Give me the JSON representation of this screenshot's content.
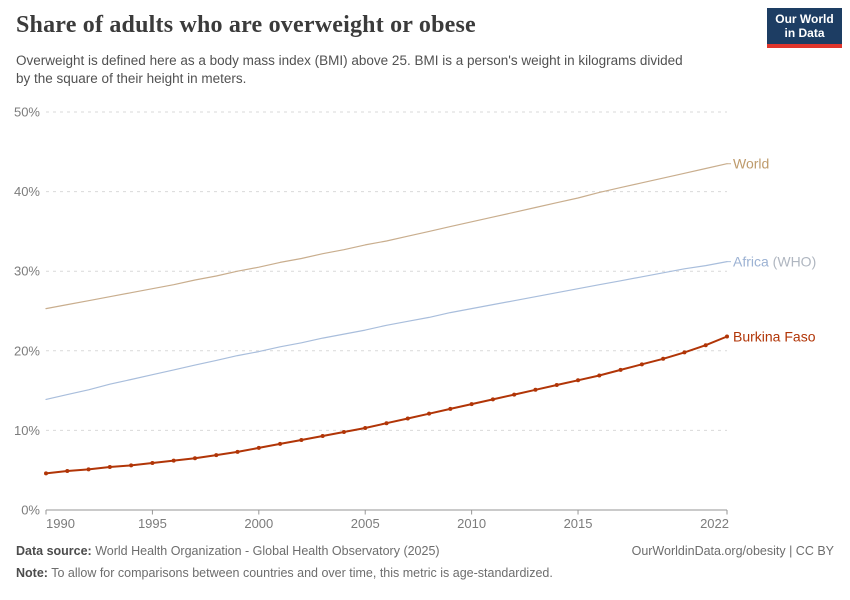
{
  "header": {
    "title": "Share of adults who are overweight or obese",
    "subtitle_line1": "Overweight is defined here as a body mass index (BMI) above 25. BMI is a person's weight in kilograms divided",
    "subtitle_line2": "by the square of their height in meters.",
    "logo": {
      "line1": "Our World",
      "line2": "in Data",
      "bg_color": "#1d3d63",
      "accent_color": "#e0352c"
    }
  },
  "chart_data": {
    "type": "line",
    "title": "Share of adults who are overweight or obese",
    "xlabel": "",
    "ylabel": "",
    "x": [
      1990,
      1991,
      1992,
      1993,
      1994,
      1995,
      1996,
      1997,
      1998,
      1999,
      2000,
      2001,
      2002,
      2003,
      2004,
      2005,
      2006,
      2007,
      2008,
      2009,
      2010,
      2011,
      2012,
      2013,
      2014,
      2015,
      2016,
      2017,
      2018,
      2019,
      2020,
      2021,
      2022
    ],
    "series": [
      {
        "name": "World",
        "label": "World",
        "label_suffix": "",
        "color": "#BE9B6C",
        "line_color": "#C9AE8E",
        "line_width": 1.2,
        "markers": false,
        "values": [
          25.3,
          25.8,
          26.3,
          26.8,
          27.3,
          27.8,
          28.3,
          28.9,
          29.4,
          30.0,
          30.5,
          31.1,
          31.6,
          32.2,
          32.7,
          33.3,
          33.8,
          34.4,
          35.0,
          35.6,
          36.2,
          36.8,
          37.4,
          38.0,
          38.6,
          39.2,
          39.9,
          40.5,
          41.1,
          41.7,
          42.3,
          42.9,
          43.5
        ]
      },
      {
        "name": "Africa (WHO)",
        "label": "Africa",
        "label_suffix": " (WHO)",
        "color": "#9CB2D3",
        "suffix_color": "#AFB6C0",
        "line_color": "#A9BEDC",
        "line_width": 1.2,
        "markers": false,
        "values": [
          13.9,
          14.5,
          15.1,
          15.8,
          16.4,
          17.0,
          17.6,
          18.2,
          18.8,
          19.4,
          19.9,
          20.5,
          21.0,
          21.6,
          22.1,
          22.6,
          23.2,
          23.7,
          24.2,
          24.8,
          25.3,
          25.8,
          26.3,
          26.8,
          27.3,
          27.8,
          28.3,
          28.8,
          29.3,
          29.8,
          30.3,
          30.7,
          31.2
        ]
      },
      {
        "name": "Burkina Faso",
        "label": "Burkina Faso",
        "label_suffix": "",
        "color": "#B13507",
        "line_color": "#B13507",
        "line_width": 2,
        "markers": true,
        "marker_radius": 2,
        "values": [
          4.6,
          4.9,
          5.1,
          5.4,
          5.6,
          5.9,
          6.2,
          6.5,
          6.9,
          7.3,
          7.8,
          8.3,
          8.8,
          9.3,
          9.8,
          10.3,
          10.9,
          11.5,
          12.1,
          12.7,
          13.3,
          13.9,
          14.5,
          15.1,
          15.7,
          16.3,
          16.9,
          17.6,
          18.3,
          19.0,
          19.8,
          20.7,
          21.8
        ]
      }
    ],
    "ylim": [
      0,
      50
    ],
    "ytick_values": [
      0,
      10,
      20,
      30,
      40,
      50
    ],
    "ytick_labels": [
      "0%",
      "10%",
      "20%",
      "30%",
      "40%",
      "50%"
    ],
    "xtick_values": [
      1990,
      1995,
      2000,
      2005,
      2010,
      2015,
      2022
    ],
    "xtick_labels": [
      "1990",
      "1995",
      "2000",
      "2005",
      "2010",
      "2015",
      "2022"
    ],
    "grid": "horizontal-dashed",
    "legend_position": "line-end-labels",
    "colors": {
      "grid": "#d9d9d9",
      "axis": "#969696",
      "tick_label": "#7c7c7c"
    }
  },
  "footer": {
    "datasource_label": "Data source:",
    "datasource_text": " World Health Organization - Global Health Observatory (2025)",
    "cc_link": "OurWorldinData.org/obesity | CC BY",
    "note_label": "Note:",
    "note_text": " To allow for comparisons between countries and over time, this metric is age-standardized."
  }
}
